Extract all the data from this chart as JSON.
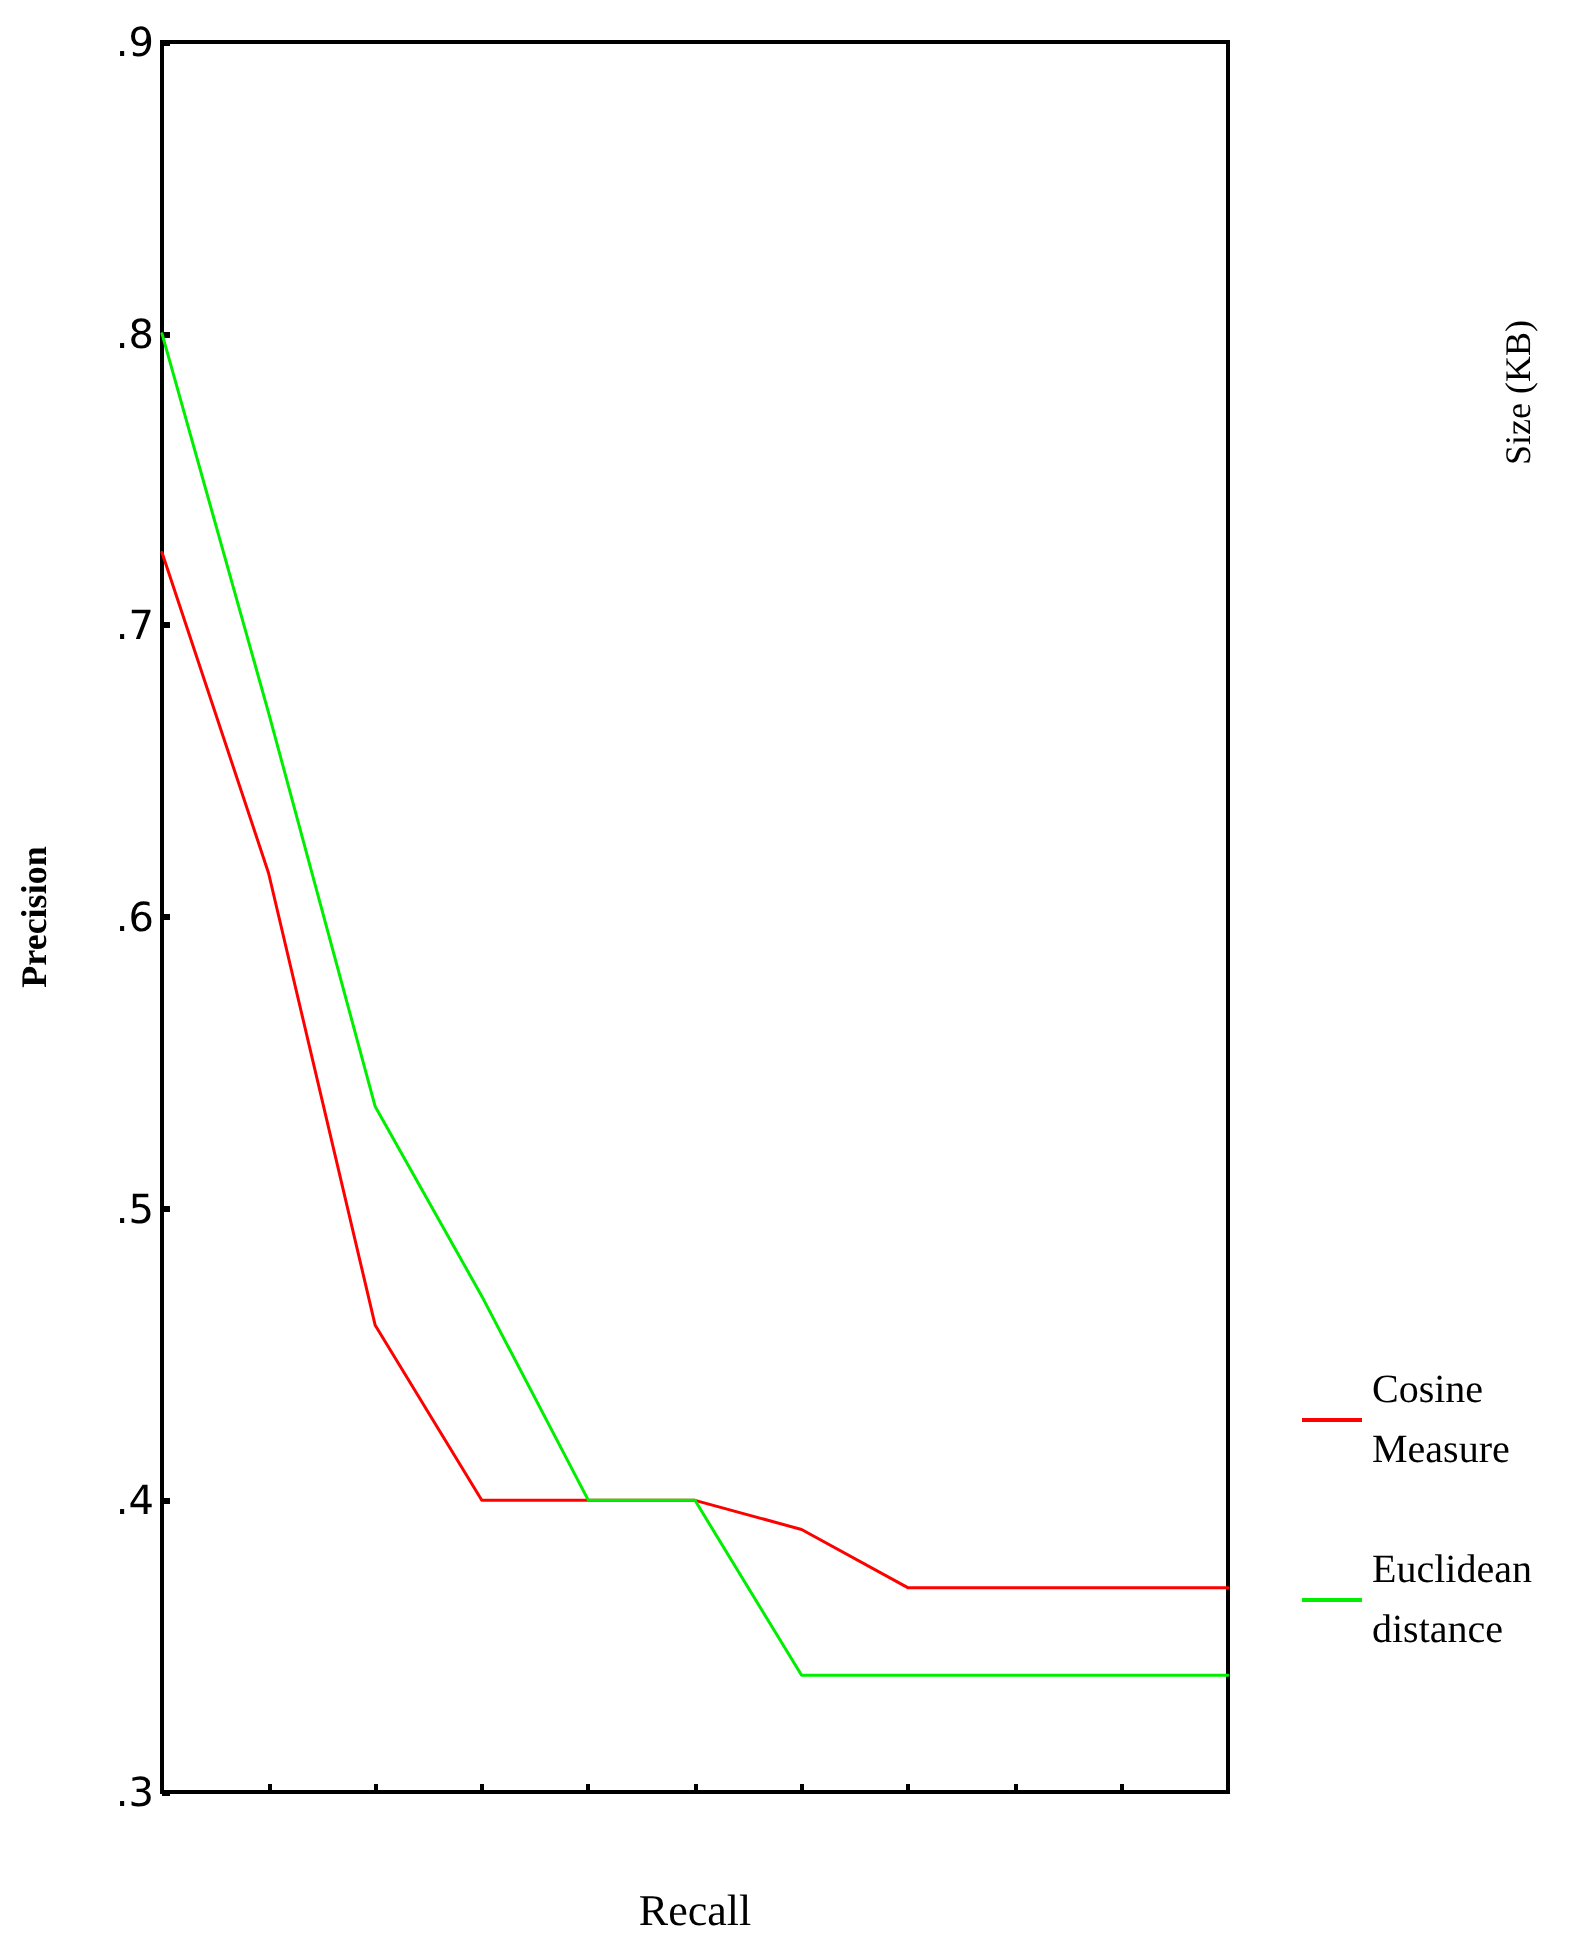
{
  "chart_data": {
    "type": "line",
    "xlabel": "Recall",
    "ylabel": "Precision",
    "categories": [
      null,
      null,
      null,
      null,
      null,
      null,
      null,
      null,
      null,
      null,
      null
    ],
    "series": [
      {
        "name": "Cosine Measure",
        "color": "#ff0000",
        "values": [
          0.725,
          0.615,
          0.46,
          0.4,
          0.4,
          0.4,
          0.39,
          0.37,
          0.37,
          0.37,
          0.37
        ]
      },
      {
        "name": "Euclidean distance",
        "color": "#00ee00",
        "values": [
          0.8,
          0.67,
          0.535,
          0.47,
          0.4,
          0.4,
          0.34,
          0.34,
          0.34,
          0.34,
          0.34
        ]
      }
    ],
    "ylim": [
      0.3,
      0.9
    ],
    "yticks": [
      {
        "value": 0.3,
        "label": ".3"
      },
      {
        "value": 0.4,
        "label": ".4"
      },
      {
        "value": 0.5,
        "label": ".5"
      },
      {
        "value": 0.6,
        "label": ".6"
      },
      {
        "value": 0.7,
        "label": ".7"
      },
      {
        "value": 0.8,
        "label": ".8"
      },
      {
        "value": 0.9,
        "label": ".9"
      }
    ],
    "grid": false,
    "legend": "bottom right",
    "marker": "none",
    "line_style": "solid",
    "tick_labels": "y",
    "annotations": [
      "Size (KB)"
    ]
  }
}
